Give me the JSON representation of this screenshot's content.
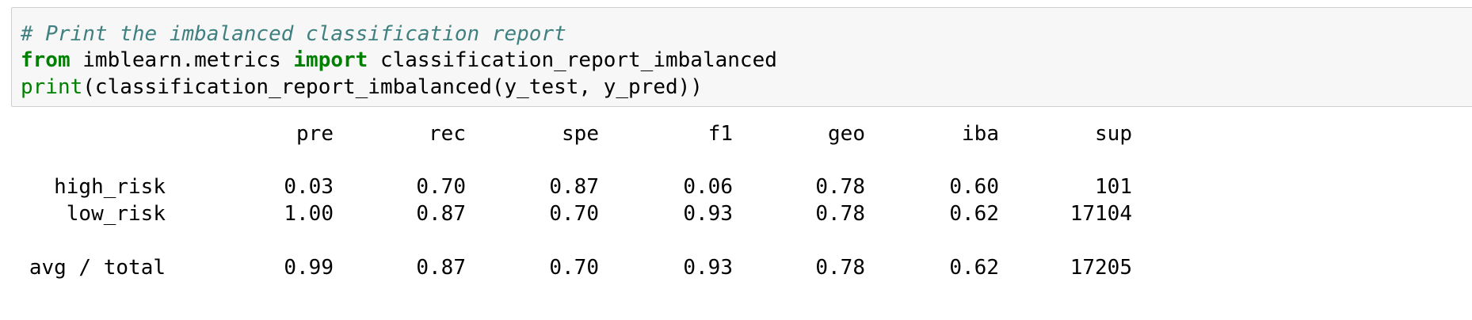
{
  "code_cell": {
    "line1_comment": "# Print the imbalanced classification report",
    "line2": {
      "kw_from": "from",
      "module": " imblearn.metrics ",
      "kw_import": "import",
      "name": " classification_report_imbalanced"
    },
    "line3": {
      "builtin_print": "print",
      "call": "(classification_report_imbalanced(y_test, y_pred))"
    }
  },
  "output": {
    "headers": [
      "pre",
      "rec",
      "spe",
      "f1",
      "geo",
      "iba",
      "sup"
    ],
    "rows": [
      {
        "label": "high_risk",
        "values": [
          "0.03",
          "0.70",
          "0.87",
          "0.06",
          "0.78",
          "0.60",
          "101"
        ]
      },
      {
        "label": "low_risk",
        "values": [
          "1.00",
          "0.87",
          "0.70",
          "0.93",
          "0.78",
          "0.62",
          "17104"
        ]
      }
    ],
    "total": {
      "label": "avg / total",
      "values": [
        "0.99",
        "0.87",
        "0.70",
        "0.93",
        "0.78",
        "0.62",
        "17205"
      ]
    }
  }
}
